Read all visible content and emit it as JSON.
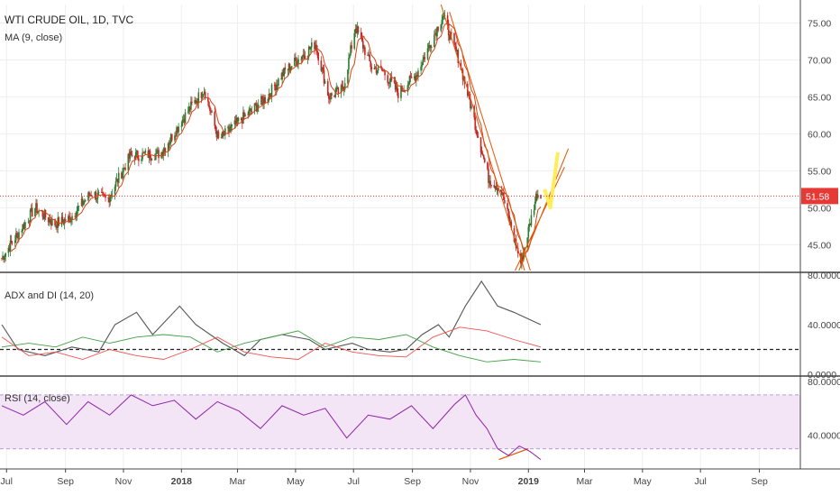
{
  "header": {
    "symbol_title": "WTI CRUDE OIL, 1D, TVC",
    "ma_label": "MA (9, close)",
    "adx_label": "ADX and DI (14, 20)",
    "rsi_label": "RSI (14, close)"
  },
  "colors": {
    "up": "#2e7d32",
    "down": "#c62828",
    "ma": "#d84315",
    "trend": "#e65100",
    "price_line": "#e53935",
    "adx": "#555555",
    "di_plus": "#43a047",
    "di_minus": "#ef5350",
    "rsi": "#8e24aa",
    "rsi_band": "#f3e5f5",
    "arrow": "#ffee58"
  },
  "chart_data": [
    {
      "type": "candlestick",
      "name": "WTI CRUDE OIL, 1D, TVC",
      "ylim": [
        41.5,
        77.5
      ],
      "y_ticks": [
        "75.00",
        "70.00",
        "65.00",
        "60.00",
        "55.00",
        "50.00",
        "45.00"
      ],
      "x_ticks": [
        "Jul",
        "Sep",
        "Nov",
        "2018",
        "Mar",
        "May",
        "Jul",
        "Sep",
        "Nov",
        "2019",
        "Mar",
        "May",
        "Jul",
        "Sep"
      ],
      "last_price": "51.58",
      "anchors": [
        [
          "2017-06-26",
          43.2
        ],
        [
          "2017-07-31",
          50.0
        ],
        [
          "2017-08-20",
          47.8
        ],
        [
          "2017-09-05",
          48.5
        ],
        [
          "2017-09-28",
          52.0
        ],
        [
          "2017-10-15",
          51.0
        ],
        [
          "2017-11-08",
          57.0
        ],
        [
          "2017-12-10",
          57.3
        ],
        [
          "2018-01-10",
          63.5
        ],
        [
          "2018-01-25",
          66.0
        ],
        [
          "2018-02-09",
          59.2
        ],
        [
          "2018-03-01",
          61.5
        ],
        [
          "2018-04-01",
          65.0
        ],
        [
          "2018-04-20",
          68.5
        ],
        [
          "2018-05-22",
          72.2
        ],
        [
          "2018-06-05",
          65.0
        ],
        [
          "2018-06-20",
          66.0
        ],
        [
          "2018-07-03",
          74.5
        ],
        [
          "2018-07-20",
          69.0
        ],
        [
          "2018-08-01",
          68.5
        ],
        [
          "2018-08-17",
          65.5
        ],
        [
          "2018-09-05",
          68.0
        ],
        [
          "2018-10-03",
          76.0
        ],
        [
          "2018-10-20",
          70.0
        ],
        [
          "2018-11-01",
          64.0
        ],
        [
          "2018-11-20",
          54.0
        ],
        [
          "2018-12-03",
          52.5
        ],
        [
          "2018-12-24",
          42.5
        ],
        [
          "2019-01-10",
          52.0
        ],
        [
          "2019-01-14",
          51.58
        ]
      ]
    },
    {
      "type": "line",
      "name": "ADX and DI (14, 20)",
      "ylim": [
        0,
        80
      ],
      "y_ticks": [
        "80.0000",
        "40.0000",
        "0.0000"
      ],
      "threshold": 20,
      "series": [
        {
          "key": "adx",
          "values": [
            [
              0,
              40
            ],
            [
              0.03,
              20
            ],
            [
              0.08,
              15
            ],
            [
              0.13,
              22
            ],
            [
              0.18,
              18
            ],
            [
              0.21,
              40
            ],
            [
              0.25,
              50
            ],
            [
              0.28,
              32
            ],
            [
              0.33,
              55
            ],
            [
              0.36,
              40
            ],
            [
              0.41,
              25
            ],
            [
              0.45,
              15
            ],
            [
              0.48,
              28
            ],
            [
              0.52,
              32
            ],
            [
              0.57,
              28
            ],
            [
              0.6,
              20
            ],
            [
              0.65,
              25
            ],
            [
              0.68,
              20
            ],
            [
              0.72,
              18
            ],
            [
              0.75,
              20
            ],
            [
              0.78,
              32
            ],
            [
              0.81,
              40
            ],
            [
              0.83,
              30
            ],
            [
              0.86,
              55
            ],
            [
              0.89,
              75
            ],
            [
              0.92,
              55
            ],
            [
              0.95,
              50
            ],
            [
              1.0,
              40
            ]
          ]
        },
        {
          "key": "di_plus",
          "values": [
            [
              0,
              22
            ],
            [
              0.05,
              25
            ],
            [
              0.1,
              22
            ],
            [
              0.15,
              30
            ],
            [
              0.2,
              25
            ],
            [
              0.25,
              30
            ],
            [
              0.3,
              32
            ],
            [
              0.35,
              30
            ],
            [
              0.4,
              18
            ],
            [
              0.45,
              25
            ],
            [
              0.5,
              30
            ],
            [
              0.55,
              35
            ],
            [
              0.6,
              22
            ],
            [
              0.65,
              30
            ],
            [
              0.7,
              28
            ],
            [
              0.75,
              32
            ],
            [
              0.8,
              22
            ],
            [
              0.85,
              15
            ],
            [
              0.9,
              10
            ],
            [
              0.95,
              12
            ],
            [
              1.0,
              10
            ]
          ]
        },
        {
          "key": "di_minus",
          "values": [
            [
              0,
              30
            ],
            [
              0.05,
              15
            ],
            [
              0.1,
              18
            ],
            [
              0.15,
              12
            ],
            [
              0.2,
              20
            ],
            [
              0.25,
              15
            ],
            [
              0.3,
              12
            ],
            [
              0.35,
              20
            ],
            [
              0.4,
              30
            ],
            [
              0.45,
              18
            ],
            [
              0.5,
              14
            ],
            [
              0.55,
              12
            ],
            [
              0.6,
              25
            ],
            [
              0.65,
              18
            ],
            [
              0.7,
              15
            ],
            [
              0.75,
              14
            ],
            [
              0.8,
              30
            ],
            [
              0.85,
              38
            ],
            [
              0.9,
              35
            ],
            [
              0.95,
              28
            ],
            [
              1.0,
              22
            ]
          ]
        }
      ]
    },
    {
      "type": "line",
      "name": "RSI (14, close)",
      "ylim": [
        15,
        82
      ],
      "y_ticks": [
        "80.0000",
        "40.0000"
      ],
      "bands": [
        30,
        70
      ],
      "series": [
        {
          "key": "rsi",
          "values": [
            [
              0,
              62
            ],
            [
              0.04,
              55
            ],
            [
              0.08,
              65
            ],
            [
              0.12,
              48
            ],
            [
              0.16,
              65
            ],
            [
              0.2,
              55
            ],
            [
              0.24,
              70
            ],
            [
              0.28,
              62
            ],
            [
              0.32,
              66
            ],
            [
              0.36,
              52
            ],
            [
              0.4,
              65
            ],
            [
              0.44,
              58
            ],
            [
              0.48,
              45
            ],
            [
              0.52,
              62
            ],
            [
              0.56,
              55
            ],
            [
              0.6,
              60
            ],
            [
              0.64,
              38
            ],
            [
              0.68,
              55
            ],
            [
              0.72,
              52
            ],
            [
              0.76,
              62
            ],
            [
              0.8,
              45
            ],
            [
              0.84,
              63
            ],
            [
              0.86,
              70
            ],
            [
              0.88,
              55
            ],
            [
              0.9,
              45
            ],
            [
              0.92,
              30
            ],
            [
              0.94,
              25
            ],
            [
              0.96,
              32
            ],
            [
              0.98,
              28
            ],
            [
              1.0,
              22
            ]
          ]
        }
      ]
    }
  ]
}
